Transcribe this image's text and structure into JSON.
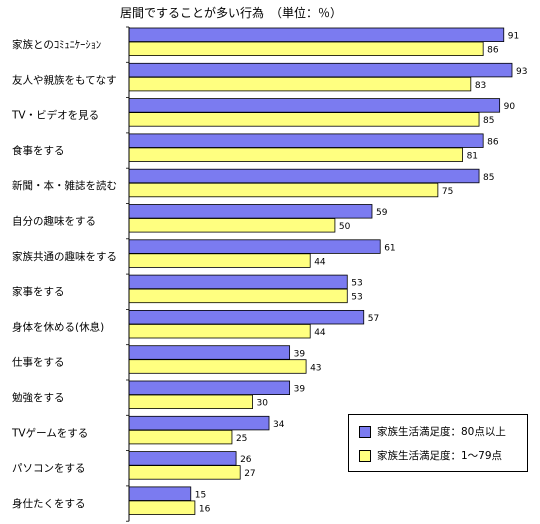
{
  "chart_data": {
    "type": "bar",
    "orientation": "horizontal",
    "title": "居間ですることが多い行為　（単位：％）",
    "categories": [
      "家族とのｺﾐｭﾆｹｰｼｮﾝ",
      "友人や親族をもてなす",
      "TV・ビデオを見る",
      "食事をする",
      "新聞・本・雑誌を読む",
      "自分の趣味をする",
      "家族共通の趣味をする",
      "家事をする",
      "身体を休める(休息)",
      "仕事をする",
      "勉強をする",
      "TVゲームをする",
      "パソコンをする",
      "身仕たくをする"
    ],
    "series": [
      {
        "name": "家族生活満足度：80点以上",
        "color": "#7b7bf0",
        "values": [
          91,
          93,
          90,
          86,
          85,
          59,
          61,
          53,
          57,
          39,
          39,
          34,
          26,
          15
        ]
      },
      {
        "name": "家族生活満足度：1～79点",
        "color": "#ffff80",
        "values": [
          86,
          83,
          85,
          81,
          75,
          50,
          44,
          53,
          44,
          43,
          30,
          25,
          27,
          16
        ]
      }
    ],
    "xlim": [
      0,
      93
    ],
    "grid": false,
    "legend_position": "bottom-right"
  }
}
